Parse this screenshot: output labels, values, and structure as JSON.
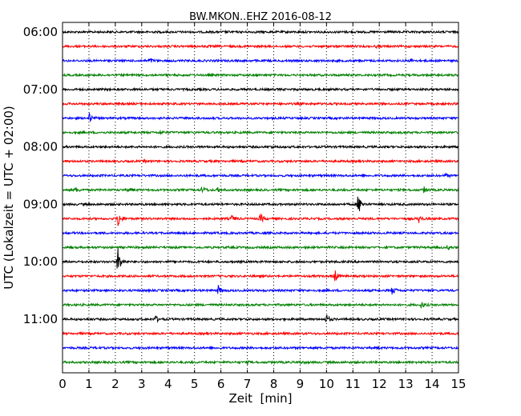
{
  "chart_data": {
    "type": "line",
    "title": "BW.MKON..EHZ 2016-08-12",
    "xlabel": "Zeit  [min]",
    "ylabel": "UTC (Lokalzeit = UTC + 02:00)",
    "xlim": [
      0,
      15
    ],
    "x_ticks": [
      "0",
      "1",
      "2",
      "3",
      "4",
      "5",
      "6",
      "7",
      "8",
      "9",
      "10",
      "11",
      "12",
      "13",
      "14",
      "15"
    ],
    "y_tick_labels": [
      "06:00",
      "07:00",
      "08:00",
      "09:00",
      "10:00",
      "11:00"
    ],
    "grid": "vertical dotted",
    "line_interval_minutes": 15,
    "color_cycle": [
      "#000000",
      "#ff0000",
      "#0000ff",
      "#008000"
    ],
    "traces": [
      {
        "start": "06:00",
        "events": [
          [
            6.2,
            0.1
          ]
        ]
      },
      {
        "start": "06:15",
        "events": [
          [
            5.5,
            0.1
          ],
          [
            11.9,
            0.15
          ]
        ]
      },
      {
        "start": "06:30",
        "events": [
          [
            3.3,
            0.4
          ],
          [
            13.2,
            0.25
          ]
        ]
      },
      {
        "start": "06:45",
        "events": []
      },
      {
        "start": "07:00",
        "events": []
      },
      {
        "start": "07:15",
        "events": []
      },
      {
        "start": "07:30",
        "events": [
          [
            1.0,
            0.9
          ]
        ]
      },
      {
        "start": "07:45",
        "events": [
          [
            3.7,
            0.3
          ]
        ]
      },
      {
        "start": "08:00",
        "events": [
          [
            7.9,
            0.15
          ]
        ]
      },
      {
        "start": "08:15",
        "events": [
          [
            3.1,
            0.15
          ]
        ]
      },
      {
        "start": "08:30",
        "events": [
          [
            14.5,
            0.25
          ]
        ]
      },
      {
        "start": "08:45",
        "events": [
          [
            0.5,
            0.4
          ],
          [
            2.5,
            0.3
          ],
          [
            5.3,
            0.6
          ],
          [
            5.9,
            0.4
          ],
          [
            13.7,
            0.5
          ]
        ]
      },
      {
        "start": "09:00",
        "events": [
          [
            11.2,
            2.0
          ]
        ]
      },
      {
        "start": "09:15",
        "events": [
          [
            2.1,
            1.6
          ],
          [
            6.4,
            0.6
          ],
          [
            7.5,
            0.8
          ],
          [
            13.5,
            0.6
          ]
        ]
      },
      {
        "start": "09:30",
        "events": []
      },
      {
        "start": "09:45",
        "events": [
          [
            14.6,
            0.3
          ]
        ]
      },
      {
        "start": "10:00",
        "events": [
          [
            2.1,
            2.5
          ]
        ]
      },
      {
        "start": "10:15",
        "events": [
          [
            10.3,
            1.3
          ]
        ]
      },
      {
        "start": "10:30",
        "events": [
          [
            5.9,
            0.8
          ],
          [
            12.5,
            0.8
          ]
        ]
      },
      {
        "start": "10:45",
        "events": [
          [
            13.6,
            0.6
          ]
        ]
      },
      {
        "start": "11:00",
        "events": [
          [
            3.5,
            0.7
          ],
          [
            10.0,
            0.8
          ]
        ]
      },
      {
        "start": "11:15",
        "events": []
      },
      {
        "start": "11:30",
        "events": []
      },
      {
        "start": "11:45",
        "events": [
          [
            7.0,
            0.2
          ],
          [
            9.0,
            0.2
          ]
        ]
      }
    ]
  }
}
